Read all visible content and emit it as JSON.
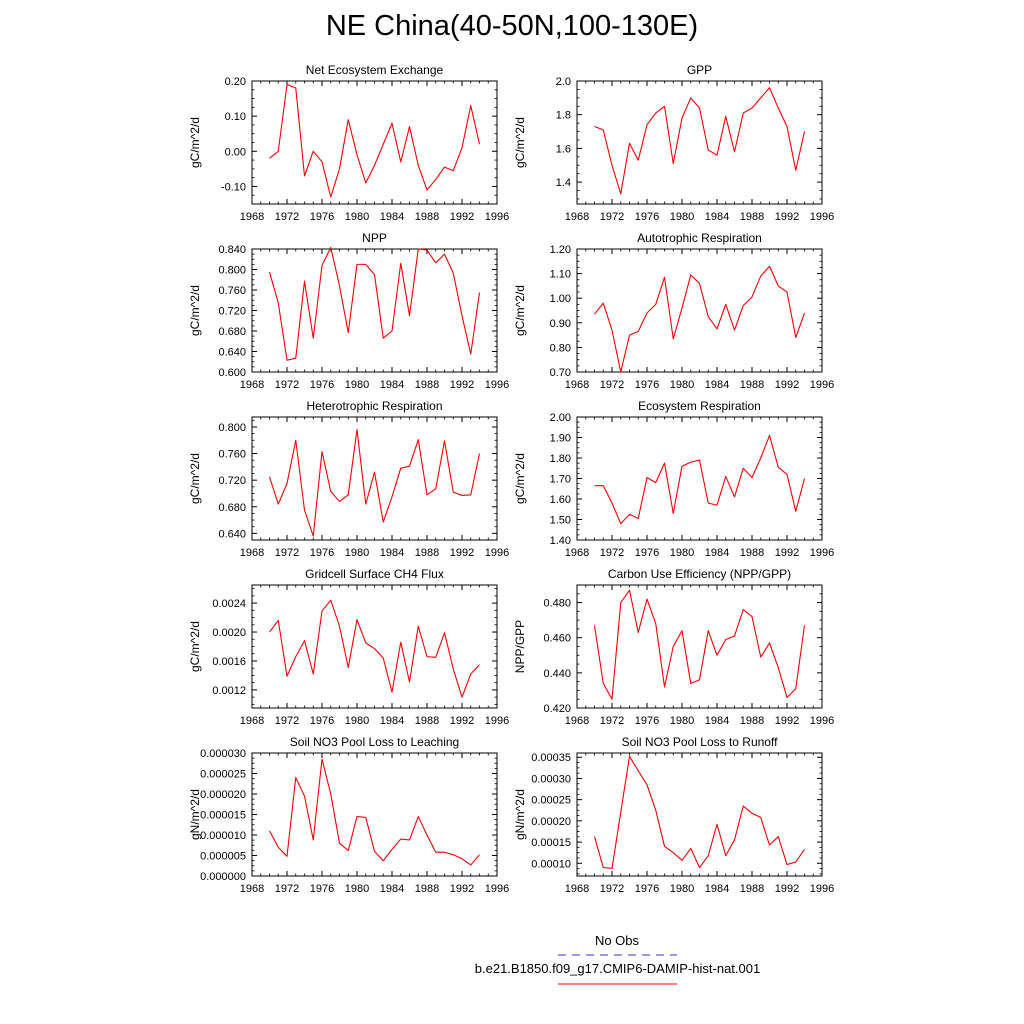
{
  "page": {
    "title": "NE China(40-50N,100-130E)"
  },
  "legend": {
    "obs_label": "No Obs",
    "model_label": "b.e21.B1850.f09_g17.CMIP6-DAMIP-hist-nat.001",
    "obs_color": "#3333cc",
    "model_color": "#ff0000"
  },
  "chart_data": [
    {
      "type": "line",
      "title": "Net Ecosystem Exchange",
      "ylabel": "gC/m^2/d",
      "xlim": [
        1968,
        1996
      ],
      "ylim": [
        -0.15,
        0.2
      ],
      "xticks": [
        1968,
        1972,
        1976,
        1980,
        1984,
        1988,
        1992,
        1996
      ],
      "xtick_labels": [
        "1968",
        "1972",
        "1976",
        "1980",
        "1984",
        "1988",
        "1992",
        "1996"
      ],
      "yticks": [
        -0.1,
        0.0,
        0.1,
        0.2
      ],
      "ytick_labels": [
        "-0.10",
        "0.00",
        "0.10",
        "0.20"
      ],
      "x": [
        1970,
        1971,
        1972,
        1973,
        1974,
        1975,
        1976,
        1977,
        1978,
        1979,
        1980,
        1981,
        1982,
        1983,
        1984,
        1985,
        1986,
        1987,
        1988,
        1989,
        1990,
        1991,
        1992,
        1993,
        1994
      ],
      "series": [
        {
          "values": [
            -0.02,
            0.0,
            0.19,
            0.18,
            -0.07,
            0.0,
            -0.03,
            -0.13,
            -0.05,
            0.09,
            -0.01,
            -0.09,
            -0.04,
            0.02,
            0.08,
            -0.03,
            0.07,
            -0.04,
            -0.11,
            -0.08,
            -0.045,
            -0.055,
            0.01,
            0.13,
            0.02
          ],
          "color": "#ff0000"
        }
      ]
    },
    {
      "type": "line",
      "title": "GPP",
      "ylabel": "gC/m^2/d",
      "xlim": [
        1968,
        1996
      ],
      "ylim": [
        1.27,
        2.0
      ],
      "xticks": [
        1968,
        1972,
        1976,
        1980,
        1984,
        1988,
        1992,
        1996
      ],
      "xtick_labels": [
        "1968",
        "1972",
        "1976",
        "1980",
        "1984",
        "1988",
        "1992",
        "1996"
      ],
      "yticks": [
        1.4,
        1.6,
        1.8,
        2.0
      ],
      "ytick_labels": [
        "1.4",
        "1.6",
        "1.8",
        "2.0"
      ],
      "x": [
        1970,
        1971,
        1972,
        1973,
        1974,
        1975,
        1976,
        1977,
        1978,
        1979,
        1980,
        1981,
        1982,
        1983,
        1984,
        1985,
        1986,
        1987,
        1988,
        1989,
        1990,
        1991,
        1992,
        1993,
        1994
      ],
      "series": [
        {
          "values": [
            1.73,
            1.71,
            1.5,
            1.33,
            1.63,
            1.53,
            1.74,
            1.81,
            1.85,
            1.51,
            1.78,
            1.9,
            1.84,
            1.59,
            1.56,
            1.79,
            1.58,
            1.81,
            1.84,
            1.9,
            1.96,
            1.84,
            1.73,
            1.47,
            1.7
          ],
          "color": "#ff0000"
        }
      ]
    },
    {
      "type": "line",
      "title": "NPP",
      "ylabel": "gC/m^2/d",
      "xlim": [
        1968,
        1996
      ],
      "ylim": [
        0.6,
        0.84
      ],
      "xticks": [
        1968,
        1972,
        1976,
        1980,
        1984,
        1988,
        1992,
        1996
      ],
      "xtick_labels": [
        "1968",
        "1972",
        "1976",
        "1980",
        "1984",
        "1988",
        "1992",
        "1996"
      ],
      "yticks": [
        0.6,
        0.64,
        0.68,
        0.72,
        0.76,
        0.8,
        0.84
      ],
      "ytick_labels": [
        "0.600",
        "0.640",
        "0.680",
        "0.720",
        "0.760",
        "0.800",
        "0.840"
      ],
      "x": [
        1970,
        1971,
        1972,
        1973,
        1974,
        1975,
        1976,
        1977,
        1978,
        1979,
        1980,
        1981,
        1982,
        1983,
        1984,
        1985,
        1986,
        1987,
        1988,
        1989,
        1990,
        1991,
        1992,
        1993,
        1994
      ],
      "series": [
        {
          "values": [
            0.795,
            0.735,
            0.623,
            0.627,
            0.777,
            0.666,
            0.808,
            0.843,
            0.768,
            0.677,
            0.81,
            0.81,
            0.79,
            0.666,
            0.68,
            0.812,
            0.71,
            0.84,
            0.838,
            0.813,
            0.83,
            0.793,
            0.71,
            0.635,
            0.755
          ],
          "color": "#ff0000"
        }
      ]
    },
    {
      "type": "line",
      "title": "Autotrophic Respiration",
      "ylabel": "gC/m^2/d",
      "xlim": [
        1968,
        1996
      ],
      "ylim": [
        0.7,
        1.2
      ],
      "xticks": [
        1968,
        1972,
        1976,
        1980,
        1984,
        1988,
        1992,
        1996
      ],
      "xtick_labels": [
        "1968",
        "1972",
        "1976",
        "1980",
        "1984",
        "1988",
        "1992",
        "1996"
      ],
      "yticks": [
        0.7,
        0.8,
        0.9,
        1.0,
        1.1,
        1.2
      ],
      "ytick_labels": [
        "0.70",
        "0.80",
        "0.90",
        "1.00",
        "1.10",
        "1.20"
      ],
      "x": [
        1970,
        1971,
        1972,
        1973,
        1974,
        1975,
        1976,
        1977,
        1978,
        1979,
        1980,
        1981,
        1982,
        1983,
        1984,
        1985,
        1986,
        1987,
        1988,
        1989,
        1990,
        1991,
        1992,
        1993,
        1994
      ],
      "series": [
        {
          "values": [
            0.935,
            0.98,
            0.87,
            0.7,
            0.85,
            0.865,
            0.94,
            0.975,
            1.085,
            0.835,
            0.96,
            1.095,
            1.06,
            0.925,
            0.875,
            0.975,
            0.87,
            0.97,
            1.005,
            1.09,
            1.13,
            1.05,
            1.025,
            0.84,
            0.94
          ],
          "color": "#ff0000"
        }
      ]
    },
    {
      "type": "line",
      "title": "Heterotrophic Respiration",
      "ylabel": "gC/m^2/d",
      "xlim": [
        1968,
        1996
      ],
      "ylim": [
        0.63,
        0.815
      ],
      "xticks": [
        1968,
        1972,
        1976,
        1980,
        1984,
        1988,
        1992,
        1996
      ],
      "xtick_labels": [
        "1968",
        "1972",
        "1976",
        "1980",
        "1984",
        "1988",
        "1992",
        "1996"
      ],
      "yticks": [
        0.64,
        0.68,
        0.72,
        0.76,
        0.8
      ],
      "ytick_labels": [
        "0.640",
        "0.680",
        "0.720",
        "0.760",
        "0.800"
      ],
      "x": [
        1970,
        1971,
        1972,
        1973,
        1974,
        1975,
        1976,
        1977,
        1978,
        1979,
        1980,
        1981,
        1982,
        1983,
        1984,
        1985,
        1986,
        1987,
        1988,
        1989,
        1990,
        1991,
        1992,
        1993,
        1994
      ],
      "series": [
        {
          "values": [
            0.725,
            0.684,
            0.715,
            0.78,
            0.675,
            0.636,
            0.763,
            0.703,
            0.688,
            0.698,
            0.796,
            0.684,
            0.732,
            0.657,
            0.695,
            0.738,
            0.741,
            0.781,
            0.698,
            0.707,
            0.779,
            0.702,
            0.697,
            0.698,
            0.76
          ],
          "color": "#ff0000"
        }
      ]
    },
    {
      "type": "line",
      "title": "Ecosystem Respiration",
      "ylabel": "gC/m^2/d",
      "xlim": [
        1968,
        1996
      ],
      "ylim": [
        1.4,
        2.0
      ],
      "xticks": [
        1968,
        1972,
        1976,
        1980,
        1984,
        1988,
        1992,
        1996
      ],
      "xtick_labels": [
        "1968",
        "1972",
        "1976",
        "1980",
        "1984",
        "1988",
        "1992",
        "1996"
      ],
      "yticks": [
        1.4,
        1.5,
        1.6,
        1.7,
        1.8,
        1.9,
        2.0
      ],
      "ytick_labels": [
        "1.40",
        "1.50",
        "1.60",
        "1.70",
        "1.80",
        "1.90",
        "2.00"
      ],
      "x": [
        1970,
        1971,
        1972,
        1973,
        1974,
        1975,
        1976,
        1977,
        1978,
        1979,
        1980,
        1981,
        1982,
        1983,
        1984,
        1985,
        1986,
        1987,
        1988,
        1989,
        1990,
        1991,
        1992,
        1993,
        1994
      ],
      "series": [
        {
          "values": [
            1.665,
            1.665,
            1.58,
            1.48,
            1.525,
            1.505,
            1.705,
            1.68,
            1.775,
            1.53,
            1.76,
            1.78,
            1.79,
            1.58,
            1.57,
            1.71,
            1.61,
            1.75,
            1.705,
            1.8,
            1.91,
            1.755,
            1.72,
            1.54,
            1.7
          ],
          "color": "#ff0000"
        }
      ]
    },
    {
      "type": "line",
      "title": "Gridcell Surface CH4 Flux",
      "ylabel": "gC/m^2/d",
      "xlim": [
        1968,
        1996
      ],
      "ylim": [
        0.00095,
        0.00265
      ],
      "xticks": [
        1968,
        1972,
        1976,
        1980,
        1984,
        1988,
        1992,
        1996
      ],
      "xtick_labels": [
        "1968",
        "1972",
        "1976",
        "1980",
        "1984",
        "1988",
        "1992",
        "1996"
      ],
      "yticks": [
        0.0012,
        0.0016,
        0.002,
        0.0024
      ],
      "ytick_labels": [
        "0.0012",
        "0.0016",
        "0.0020",
        "0.0024"
      ],
      "x": [
        1970,
        1971,
        1972,
        1973,
        1974,
        1975,
        1976,
        1977,
        1978,
        1979,
        1980,
        1981,
        1982,
        1983,
        1984,
        1985,
        1986,
        1987,
        1988,
        1989,
        1990,
        1991,
        1992,
        1993,
        1994
      ],
      "series": [
        {
          "values": [
            0.002,
            0.00216,
            0.00139,
            0.00166,
            0.00188,
            0.00142,
            0.00229,
            0.00244,
            0.00208,
            0.00151,
            0.00217,
            0.00185,
            0.00177,
            0.00164,
            0.00117,
            0.00186,
            0.00131,
            0.00208,
            0.00166,
            0.00165,
            0.00199,
            0.00149,
            0.0011,
            0.00142,
            0.00155
          ],
          "color": "#ff0000"
        }
      ]
    },
    {
      "type": "line",
      "title": "Carbon Use Efficiency (NPP/GPP)",
      "ylabel": "NPP/GPP",
      "xlim": [
        1968,
        1996
      ],
      "ylim": [
        0.42,
        0.49
      ],
      "xticks": [
        1968,
        1972,
        1976,
        1980,
        1984,
        1988,
        1992,
        1996
      ],
      "xtick_labels": [
        "1968",
        "1972",
        "1976",
        "1980",
        "1984",
        "1988",
        "1992",
        "1996"
      ],
      "yticks": [
        0.42,
        0.44,
        0.46,
        0.48
      ],
      "ytick_labels": [
        "0.420",
        "0.440",
        "0.460",
        "0.480"
      ],
      "x": [
        1970,
        1971,
        1972,
        1973,
        1974,
        1975,
        1976,
        1977,
        1978,
        1979,
        1980,
        1981,
        1982,
        1983,
        1984,
        1985,
        1986,
        1987,
        1988,
        1989,
        1990,
        1991,
        1992,
        1993,
        1994
      ],
      "series": [
        {
          "values": [
            0.467,
            0.434,
            0.425,
            0.48,
            0.487,
            0.463,
            0.482,
            0.468,
            0.432,
            0.455,
            0.464,
            0.434,
            0.436,
            0.464,
            0.45,
            0.459,
            0.461,
            0.476,
            0.472,
            0.449,
            0.457,
            0.443,
            0.426,
            0.431,
            0.467
          ],
          "color": "#ff0000"
        }
      ]
    },
    {
      "type": "line",
      "title": "Soil NO3 Pool Loss to Leaching",
      "ylabel": "gN/m^2/d",
      "xlim": [
        1968,
        1996
      ],
      "ylim": [
        0.0,
        3e-05
      ],
      "xticks": [
        1968,
        1972,
        1976,
        1980,
        1984,
        1988,
        1992,
        1996
      ],
      "xtick_labels": [
        "1968",
        "1972",
        "1976",
        "1980",
        "1984",
        "1988",
        "1992",
        "1996"
      ],
      "yticks": [
        0.0,
        5e-06,
        1e-05,
        1.5e-05,
        2e-05,
        2.5e-05,
        3e-05
      ],
      "ytick_labels": [
        "0.000000",
        "0.000005",
        "0.000010",
        "0.000015",
        "0.000020",
        "0.000025",
        "0.000030"
      ],
      "x": [
        1970,
        1971,
        1972,
        1973,
        1974,
        1975,
        1976,
        1977,
        1978,
        1979,
        1980,
        1981,
        1982,
        1983,
        1984,
        1985,
        1986,
        1987,
        1988,
        1989,
        1990,
        1991,
        1992,
        1993,
        1994
      ],
      "series": [
        {
          "values": [
            1.1e-05,
            7e-06,
            4.8e-06,
            2.4e-05,
            1.95e-05,
            8.8e-06,
            2.85e-05,
            2e-05,
            8e-06,
            6.2e-06,
            1.45e-05,
            1.43e-05,
            6e-06,
            3.7e-06,
            6.5e-06,
            9e-06,
            8.8e-06,
            1.45e-05,
            1e-05,
            5.8e-06,
            5.8e-06,
            5.2e-06,
            4.2e-06,
            2.7e-06,
            5.2e-06
          ],
          "color": "#ff0000"
        }
      ]
    },
    {
      "type": "line",
      "title": "Soil NO3 Pool Loss to Runoff",
      "ylabel": "gN/m^2/d",
      "xlim": [
        1968,
        1996
      ],
      "ylim": [
        7e-05,
        0.00036
      ],
      "xticks": [
        1968,
        1972,
        1976,
        1980,
        1984,
        1988,
        1992,
        1996
      ],
      "xtick_labels": [
        "1968",
        "1972",
        "1976",
        "1980",
        "1984",
        "1988",
        "1992",
        "1996"
      ],
      "yticks": [
        0.0001,
        0.00015,
        0.0002,
        0.00025,
        0.0003,
        0.00035
      ],
      "ytick_labels": [
        "0.00010",
        "0.00015",
        "0.00020",
        "0.00025",
        "0.00030",
        "0.00035"
      ],
      "x": [
        1970,
        1971,
        1972,
        1973,
        1974,
        1975,
        1976,
        1977,
        1978,
        1979,
        1980,
        1981,
        1982,
        1983,
        1984,
        1985,
        1986,
        1987,
        1988,
        1989,
        1990,
        1991,
        1992,
        1993,
        1994
      ],
      "series": [
        {
          "values": [
            0.000163,
            9e-05,
            8.8e-05,
            0.00022,
            0.000352,
            0.000318,
            0.000285,
            0.000225,
            0.00014,
            0.000125,
            0.000107,
            0.000135,
            9e-05,
            0.000118,
            0.000192,
            0.000118,
            0.000155,
            0.000235,
            0.000218,
            0.000208,
            0.000143,
            0.000163,
            9.7e-05,
            0.000103,
            0.000133
          ],
          "color": "#ff0000"
        }
      ]
    }
  ]
}
